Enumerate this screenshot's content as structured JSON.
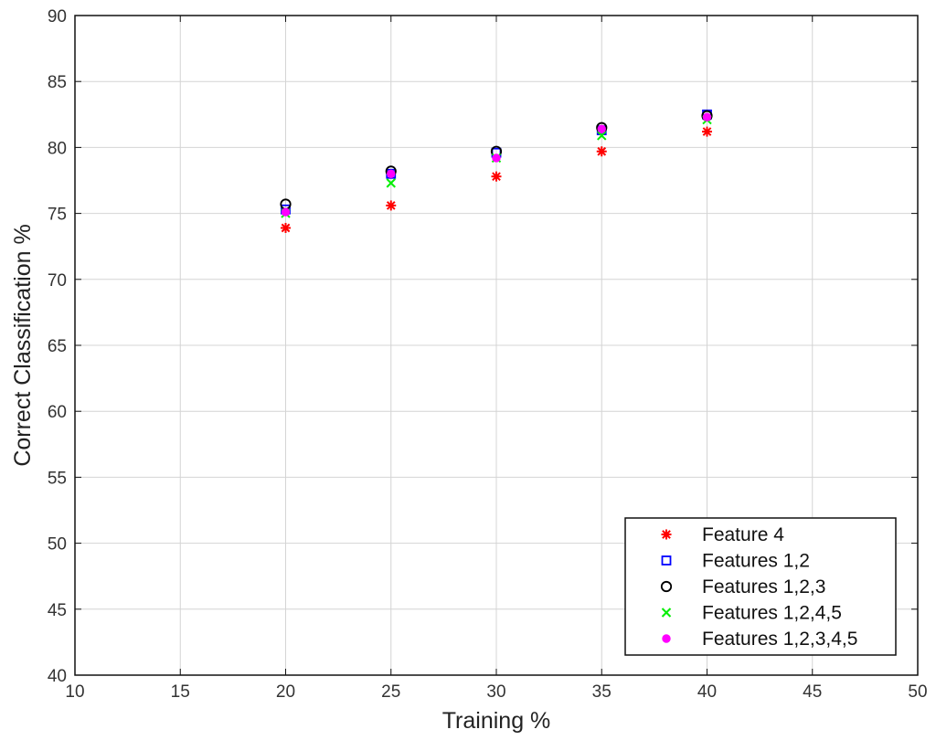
{
  "chart_data": {
    "type": "scatter",
    "title": "",
    "xlabel": "Training %",
    "ylabel": "Correct Classification %",
    "xlim": [
      10,
      50
    ],
    "ylim": [
      40,
      90
    ],
    "xticks": [
      10,
      15,
      20,
      25,
      30,
      35,
      40,
      45,
      50
    ],
    "yticks": [
      40,
      45,
      50,
      55,
      60,
      65,
      70,
      75,
      80,
      85,
      90
    ],
    "grid": true,
    "legend_position": "bottom-right",
    "series": [
      {
        "name": "Feature 4",
        "marker": "asterisk",
        "color": "#ff0000",
        "x": [
          20,
          25,
          30,
          35,
          40
        ],
        "y": [
          73.9,
          75.6,
          77.8,
          79.7,
          81.2
        ]
      },
      {
        "name": "Features 1,2",
        "marker": "square",
        "color": "#0000ff",
        "x": [
          20,
          25,
          30,
          35,
          40
        ],
        "y": [
          75.3,
          78.0,
          79.6,
          81.3,
          82.5
        ]
      },
      {
        "name": "Features 1,2,3",
        "marker": "circle",
        "color": "#000000",
        "x": [
          20,
          25,
          30,
          35,
          40
        ],
        "y": [
          75.7,
          78.2,
          79.7,
          81.5,
          82.4
        ]
      },
      {
        "name": "Features 1,2,4,5",
        "marker": "x",
        "color": "#00ee00",
        "x": [
          20,
          25,
          30,
          35,
          40
        ],
        "y": [
          75.0,
          77.3,
          79.2,
          80.9,
          82.1
        ]
      },
      {
        "name": "Features 1,2,3,4,5",
        "marker": "dot",
        "color": "#ff00ff",
        "x": [
          20,
          25,
          30,
          35,
          40
        ],
        "y": [
          75.1,
          78.0,
          79.2,
          81.4,
          82.3
        ]
      }
    ]
  }
}
